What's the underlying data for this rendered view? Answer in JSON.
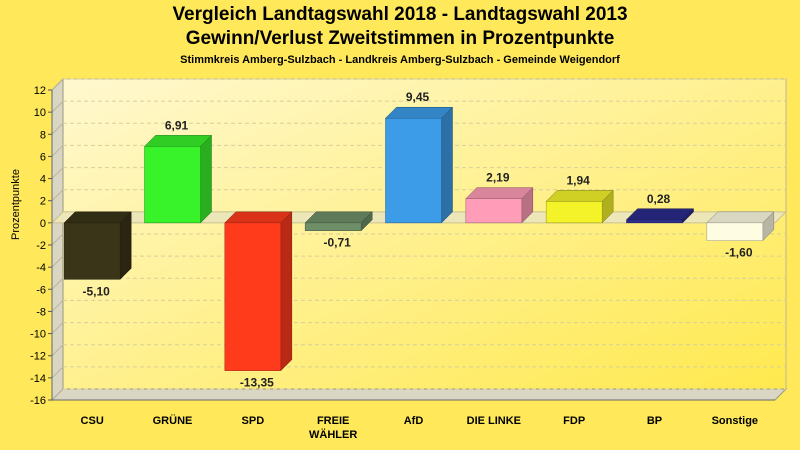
{
  "title": "Vergleich Landtagswahl 2018 - Landtagswahl 2013",
  "subtitle": "Gewinn/Verlust Zweitstimmen in Prozentpunkte",
  "caption": "Stimmkreis Amberg-Sulzbach - Landkreis Amberg-Sulzbach - Gemeinde Weigendorf",
  "chart_data": {
    "type": "bar",
    "title": "Vergleich Landtagswahl 2018 - Landtagswahl 2013",
    "subtitle": "Gewinn/Verlust Zweitstimmen in Prozentpunkte",
    "xlabel": "",
    "ylabel": "Prozentpunkte",
    "ylim": [
      -16,
      12
    ],
    "yticks": [
      12,
      10,
      8,
      6,
      4,
      2,
      0,
      -2,
      -4,
      -6,
      -8,
      -10,
      -12,
      -14,
      -16
    ],
    "grid": true,
    "categories": [
      "CSU",
      "GRÜNE",
      "SPD",
      "FREIE WÄHLER",
      "AfD",
      "DIE LINKE",
      "FDP",
      "BP",
      "Sonstige"
    ],
    "category_lines": [
      [
        "CSU"
      ],
      [
        "GRÜNE"
      ],
      [
        "SPD"
      ],
      [
        "FREIE",
        "WÄHLER"
      ],
      [
        "AfD"
      ],
      [
        "DIE LINKE"
      ],
      [
        "FDP"
      ],
      [
        "BP"
      ],
      [
        "Sonstige"
      ]
    ],
    "values": [
      -5.1,
      6.91,
      -13.35,
      -0.71,
      9.45,
      2.19,
      1.94,
      0.28,
      -1.6
    ],
    "value_labels": [
      "-5,10",
      "6,91",
      "-13,35",
      "-0,71",
      "9,45",
      "2,19",
      "1,94",
      "0,28",
      "-1,60"
    ],
    "colors": [
      "#3a3418",
      "#38f22a",
      "#ff3b1c",
      "#6e8f68",
      "#3c9ce8",
      "#ff9cb8",
      "#f4f32a",
      "#2c2c8c",
      "#fffce4"
    ]
  }
}
